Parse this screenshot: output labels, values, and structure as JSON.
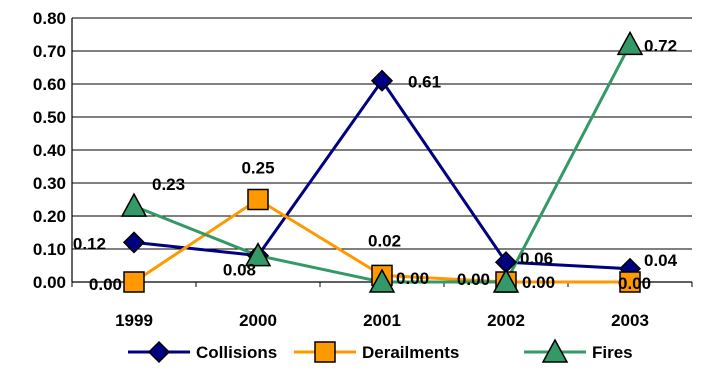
{
  "chart_data": {
    "type": "line",
    "categories": [
      "1999",
      "2000",
      "2001",
      "2002",
      "2003"
    ],
    "ylim": [
      0,
      0.8
    ],
    "ytick_labels": [
      "0.00",
      "0.10",
      "0.20",
      "0.30",
      "0.40",
      "0.50",
      "0.60",
      "0.70",
      "0.80"
    ],
    "grid": true,
    "legend_position": "bottom",
    "series": [
      {
        "name": "Collisions",
        "values": [
          0.12,
          0.08,
          0.61,
          0.06,
          0.04
        ],
        "labels": [
          "0.12",
          "0.08",
          "0.61",
          "0.06",
          "0.04"
        ],
        "color": "#000080",
        "marker": "diamond"
      },
      {
        "name": "Derailments",
        "values": [
          0.0,
          0.25,
          0.02,
          0.0,
          0.0
        ],
        "labels": [
          "0.00",
          "0.25",
          "0.02",
          "0.00",
          "0.00"
        ],
        "color": "#FF9900",
        "marker": "square"
      },
      {
        "name": "Fires",
        "values": [
          0.23,
          0.08,
          0.0,
          0.0,
          0.72
        ],
        "labels": [
          "0.23",
          "",
          "0.00",
          "0.00",
          "0.72"
        ],
        "color": "#339966",
        "marker": "triangle"
      }
    ]
  }
}
